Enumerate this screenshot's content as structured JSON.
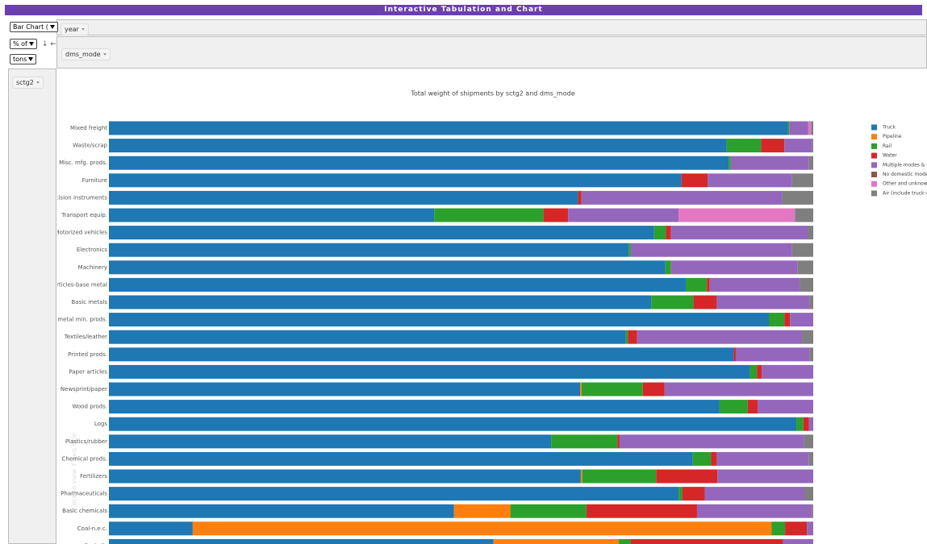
{
  "ui": {
    "title": "Interactive Tabulation and Chart",
    "chart_type": "Bar Chart (",
    "column_field": "year",
    "aggregate": "% of",
    "arrows": "↓ ←",
    "measure": "tons",
    "color_field": "dms_mode",
    "row_field": "sctg2",
    "y_axis_hint": "Click to view Y axis title"
  },
  "chart_data": {
    "type": "stacked_bar_horizontal",
    "title": "Total weight of shipments by sctg2 and dms_mode",
    "categories": [
      "Mixed freight",
      "Waste/scrap",
      "Misc. mfg. prods.",
      "Furniture",
      "Precision instruments",
      "Transport equip.",
      "Motorized vehicles",
      "Electronics",
      "Machinery",
      "Articles-base metal",
      "Basic metals",
      "Nonmetal min. prods.",
      "Textiles/leather",
      "Printed prods.",
      "Paper articles",
      "Newsprint/paper",
      "Wood prods.",
      "Logs",
      "Plastics/rubber",
      "Chemical prods.",
      "Fertilizers",
      "Pharmaceuticals",
      "Basic chemicals",
      "Coal-n.e.c.",
      "Fuel oils"
    ],
    "xlim": [
      0,
      100
    ],
    "legend": "right",
    "series": [
      {
        "name": "Truck",
        "color": "#1f77b4",
        "values": [
          96.4,
          87.7,
          88.0,
          81.3,
          66.6,
          46.2,
          77.4,
          73.8,
          79.0,
          81.9,
          77.0,
          93.7,
          73.4,
          88.7,
          91.0,
          66.9,
          86.7,
          97.6,
          62.8,
          82.9,
          67.0,
          80.9,
          49.0,
          11.9,
          54.6
        ]
      },
      {
        "name": "Pipeline",
        "color": "#ff7f0e",
        "values": [
          0,
          0,
          0,
          0,
          0,
          0,
          0,
          0,
          0,
          0,
          0,
          0,
          0,
          0,
          0,
          0.2,
          0,
          0,
          0,
          0,
          0.2,
          0,
          8.0,
          82.2,
          17.8
        ]
      },
      {
        "name": "Rail",
        "color": "#2ca02c",
        "values": [
          0.2,
          4.9,
          0.3,
          0,
          0,
          15.5,
          1.7,
          0.3,
          0.8,
          3.0,
          6.0,
          2.2,
          0.3,
          0,
          1.0,
          8.7,
          4.0,
          1.0,
          9.4,
          2.6,
          10.5,
          0.5,
          10.8,
          1.9,
          1.7
        ]
      },
      {
        "name": "Water",
        "color": "#d62728",
        "values": [
          0,
          3.3,
          0,
          3.7,
          0.5,
          3.5,
          0.7,
          0,
          0,
          0.4,
          3.3,
          0.8,
          1.3,
          0.3,
          0.7,
          3.1,
          1.4,
          0.8,
          0.3,
          0.8,
          8.7,
          3.2,
          15.7,
          3.1,
          21.6
        ]
      },
      {
        "name": "Multiple modes & mail",
        "color": "#9467bd",
        "values": [
          2.7,
          3.9,
          11.1,
          12.0,
          28.5,
          15.7,
          19.4,
          22.9,
          18.0,
          12.8,
          13.2,
          3.3,
          23.4,
          10.5,
          7.3,
          21.1,
          7.9,
          0.6,
          26.2,
          13.1,
          13.6,
          14.2,
          16.3,
          0.9,
          4.3
        ]
      },
      {
        "name": "No domestic mode",
        "color": "#8c564b",
        "values": [
          0,
          0,
          0,
          0,
          0,
          0,
          0,
          0,
          0,
          0,
          0,
          0,
          0,
          0,
          0,
          0,
          0,
          0,
          0,
          0,
          0,
          0,
          0,
          0,
          0
        ]
      },
      {
        "name": "Other and unknown",
        "color": "#e377c2",
        "values": [
          0.4,
          0,
          0,
          0,
          0,
          16.5,
          0,
          0,
          0,
          0,
          0,
          0,
          0,
          0,
          0,
          0,
          0,
          0,
          0,
          0,
          0,
          0,
          0,
          0,
          0
        ]
      },
      {
        "name": "Air (include truck-air)",
        "color": "#7f7f7f",
        "values": [
          0.3,
          0.2,
          0.6,
          3.0,
          4.4,
          2.6,
          0.8,
          3.0,
          2.2,
          1.9,
          0.5,
          0,
          1.6,
          0.5,
          0,
          0,
          0,
          0,
          1.3,
          0.6,
          0,
          1.2,
          0.2,
          0,
          0
        ]
      }
    ]
  }
}
